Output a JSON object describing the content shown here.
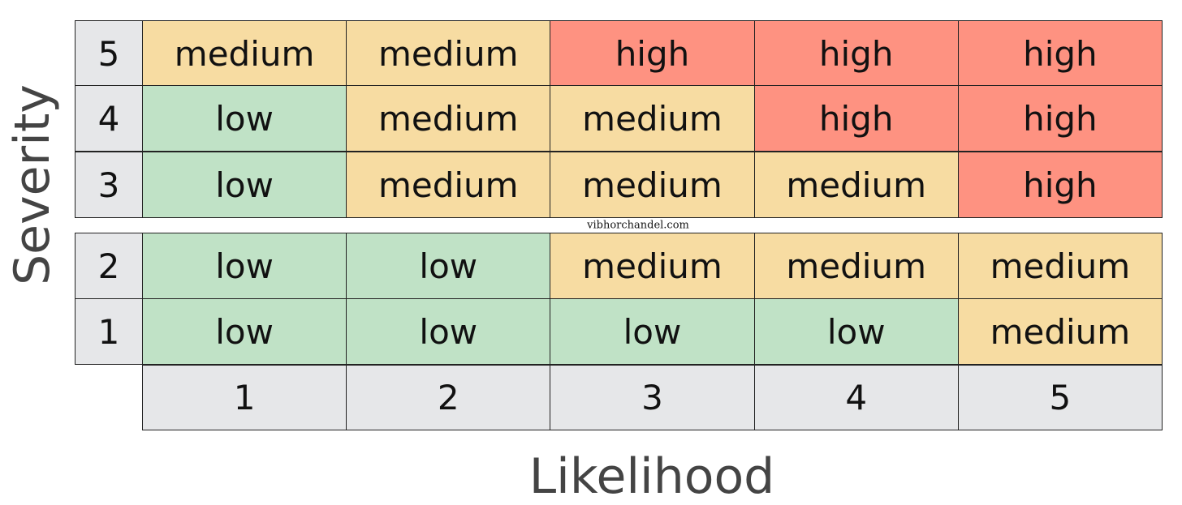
{
  "y_axis_label": "Severity",
  "x_axis_label": "Likelihood",
  "watermark": "vibhorchandel.com",
  "colors": {
    "low": "#c0e2c6",
    "medium": "#f7dca2",
    "high": "#fe9281"
  },
  "rows": [
    {
      "severity": "5",
      "cells": [
        "medium",
        "medium",
        "high",
        "high",
        "high"
      ]
    },
    {
      "severity": "4",
      "cells": [
        "low",
        "medium",
        "medium",
        "high",
        "high"
      ]
    },
    {
      "severity": "3",
      "cells": [
        "low",
        "medium",
        "medium",
        "medium",
        "high"
      ]
    },
    {
      "severity": "2",
      "cells": [
        "low",
        "low",
        "medium",
        "medium",
        "medium"
      ]
    },
    {
      "severity": "1",
      "cells": [
        "low",
        "low",
        "low",
        "low",
        "medium"
      ]
    }
  ],
  "likelihood": [
    "1",
    "2",
    "3",
    "4",
    "5"
  ]
}
